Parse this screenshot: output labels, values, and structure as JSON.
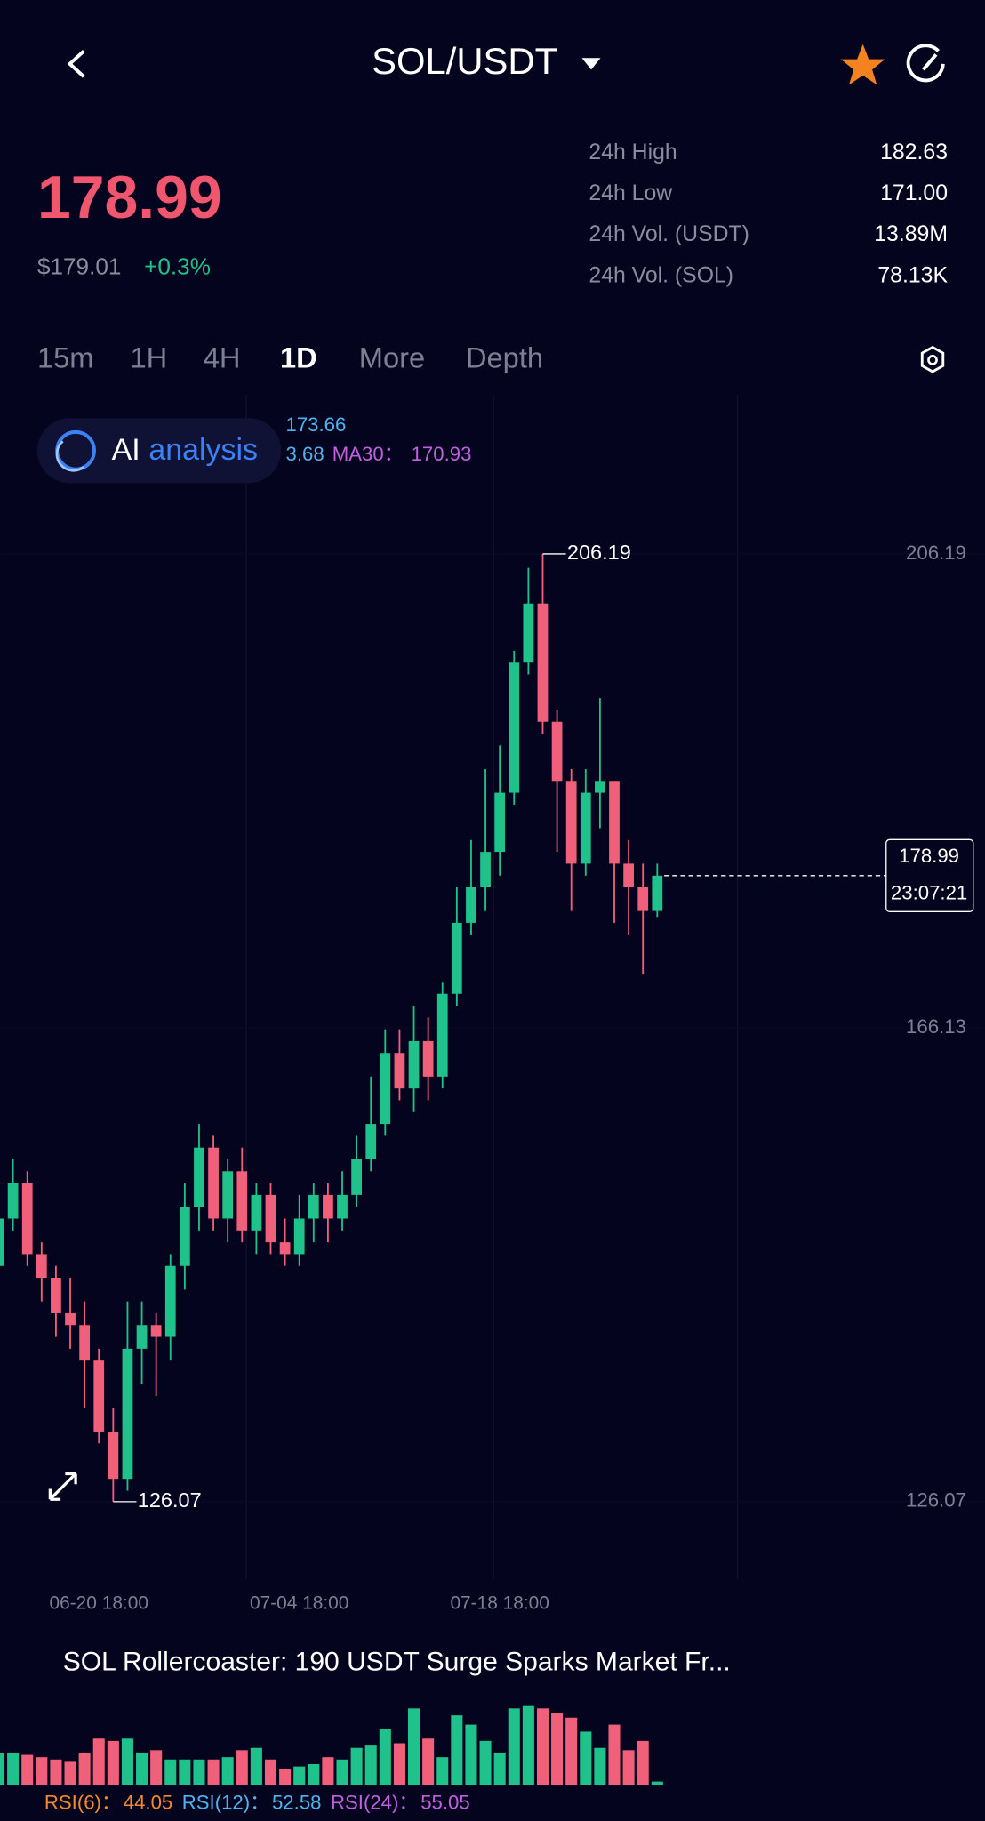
{
  "header": {
    "title": "SOL/USDT"
  },
  "ticker": {
    "price": "178.99",
    "usd_price": "$179.01",
    "change": "+0.3%",
    "stats": [
      {
        "label": "24h High",
        "value": "182.63"
      },
      {
        "label": "24h Low",
        "value": "171.00"
      },
      {
        "label": "24h Vol. (USDT)",
        "value": "13.89M"
      },
      {
        "label": "24h Vol. (SOL)",
        "value": "78.13K"
      }
    ]
  },
  "tabs": [
    "15m",
    "1H",
    "4H",
    "1D",
    "More",
    "Depth"
  ],
  "ai_button": {
    "label_1": "AI",
    "label_2": "analysis"
  },
  "ma_legend": [
    "173.66",
    "3.68",
    "MA30：",
    "170.93"
  ],
  "chart_data": {
    "type": "candlestick",
    "categories": [
      null,
      null,
      null,
      null,
      null,
      null,
      null,
      "06-20 18:00",
      null,
      null,
      null,
      null,
      null,
      null,
      null,
      null,
      null,
      null,
      null,
      null,
      null,
      "07-04 18:00",
      null,
      null,
      null,
      null,
      null,
      null,
      null,
      null,
      null,
      null,
      null,
      null,
      null,
      "07-18 18:00",
      null,
      null,
      null,
      null,
      null,
      null,
      null,
      null,
      null,
      null,
      null
    ],
    "open": [
      146,
      150,
      153,
      147,
      145,
      142,
      141,
      138,
      132,
      128,
      139,
      141,
      140,
      146,
      151,
      156,
      150,
      154,
      149,
      152,
      148,
      147,
      150,
      152,
      150,
      152,
      155,
      158,
      164,
      161,
      165,
      162,
      169,
      175,
      178,
      181,
      186,
      197,
      202,
      192,
      187,
      180,
      186,
      187,
      180,
      178,
      176
    ],
    "high": [
      152,
      155,
      154,
      148,
      146,
      145,
      143,
      139,
      134,
      143,
      143,
      142,
      147,
      153,
      158,
      157,
      155,
      156,
      153,
      153,
      150,
      152,
      153,
      153,
      154,
      157,
      162,
      166,
      166,
      168,
      167,
      170,
      178,
      182,
      188,
      190,
      198,
      205,
      206.19,
      193,
      188,
      188,
      194,
      187,
      182,
      180,
      180
    ],
    "low": [
      143,
      149,
      146,
      143,
      140,
      139,
      134,
      131,
      126.07,
      127,
      136,
      135,
      138,
      144,
      149,
      149,
      148,
      148,
      147,
      147,
      146,
      146,
      148,
      148,
      149,
      151,
      154,
      157,
      160,
      159,
      160,
      161,
      168,
      174,
      176,
      179,
      185,
      196,
      191,
      181,
      176,
      179,
      183,
      175,
      174,
      170.7,
      175.5
    ],
    "close": [
      150,
      153,
      147,
      145,
      142,
      141,
      138,
      132,
      128,
      139,
      141,
      140,
      146,
      151,
      156,
      150,
      154,
      149,
      152,
      148,
      147,
      150,
      152,
      150,
      152,
      155,
      158,
      164,
      161,
      165,
      162,
      169,
      175,
      178,
      181,
      186,
      197,
      202,
      192,
      187,
      180,
      186,
      187,
      180,
      178,
      176,
      178.99
    ],
    "volume": [
      28,
      28,
      26,
      24,
      22,
      20,
      28,
      40,
      38,
      40,
      28,
      30,
      22,
      22,
      22,
      22,
      24,
      30,
      32,
      22,
      14,
      16,
      18,
      24,
      22,
      32,
      34,
      48,
      36,
      66,
      40,
      24,
      60,
      52,
      38,
      28,
      66,
      68,
      66,
      62,
      58,
      46,
      32,
      52,
      30,
      38,
      3
    ],
    "up_color": "#1fc28a",
    "down_color": "#f0607a",
    "ylim": [
      121.46,
      210.8
    ],
    "yticks": [
      206.19,
      166.13,
      126.07
    ],
    "countdown": "23:07:21"
  },
  "news": {
    "headline": "SOL Rollercoaster: 190 USDT Surge Sparks Market Fr..."
  },
  "rsi": [
    {
      "label": "RSI(6)：",
      "value": "44.05",
      "color": "#f08a2c"
    },
    {
      "label": "RSI(12)：",
      "value": "52.58",
      "color": "#4fb3ef"
    },
    {
      "label": "RSI(24)：",
      "value": "55.05",
      "color": "#c060e0"
    }
  ]
}
